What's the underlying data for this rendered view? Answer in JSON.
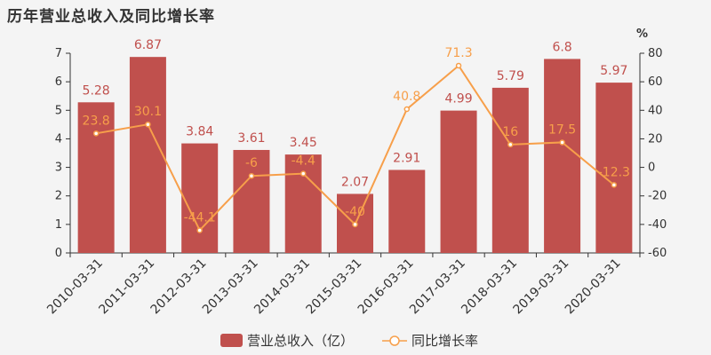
{
  "title": "历年营业总收入及同比增长率",
  "colors": {
    "bar": "#c0504d",
    "line": "#f79f4a",
    "axis": "#333333",
    "grid": "#e6e6e6"
  },
  "chart_data": {
    "type": "bar",
    "categories": [
      "2010-03-31",
      "2011-03-31",
      "2012-03-31",
      "2013-03-31",
      "2014-03-31",
      "2015-03-31",
      "2016-03-31",
      "2017-03-31",
      "2018-03-31",
      "2019-03-31",
      "2020-03-31"
    ],
    "series": [
      {
        "name": "营业总收入（亿）",
        "type": "bar",
        "axis": "left",
        "values": [
          5.28,
          6.87,
          3.84,
          3.61,
          3.45,
          2.07,
          2.91,
          4.99,
          5.79,
          6.8,
          5.97
        ]
      },
      {
        "name": "同比增长率",
        "type": "line",
        "axis": "right",
        "values": [
          23.8,
          30.1,
          -44.1,
          -6,
          -4.4,
          -40,
          40.8,
          71.3,
          16,
          17.5,
          -12.3
        ]
      }
    ],
    "y_left": {
      "min": 0,
      "max": 7,
      "ticks": [
        0,
        1,
        2,
        3,
        4,
        5,
        6,
        7
      ]
    },
    "y_right": {
      "min": -60,
      "max": 80,
      "ticks": [
        -60,
        -40,
        -20,
        0,
        20,
        40,
        60,
        80
      ],
      "unit": "%"
    },
    "legend": "bottom-center",
    "grid": false
  }
}
